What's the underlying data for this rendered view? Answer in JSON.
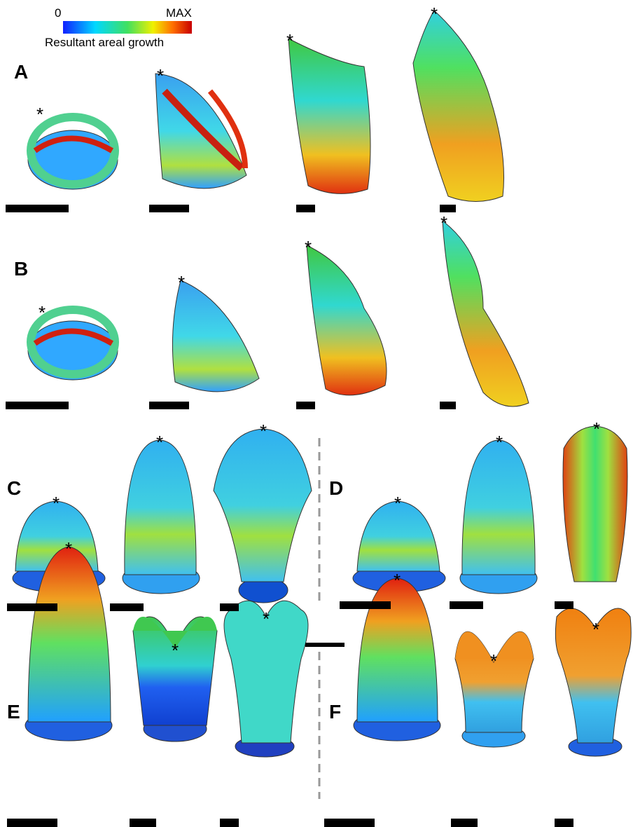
{
  "colorbar": {
    "min_label": "0",
    "max_label": "MAX",
    "title": "Resultant areal growth"
  },
  "panels": [
    {
      "label": "A"
    },
    {
      "label": "B"
    },
    {
      "label": "C"
    },
    {
      "label": "D"
    },
    {
      "label": "E"
    },
    {
      "label": "F"
    }
  ],
  "apex_marker": "*"
}
